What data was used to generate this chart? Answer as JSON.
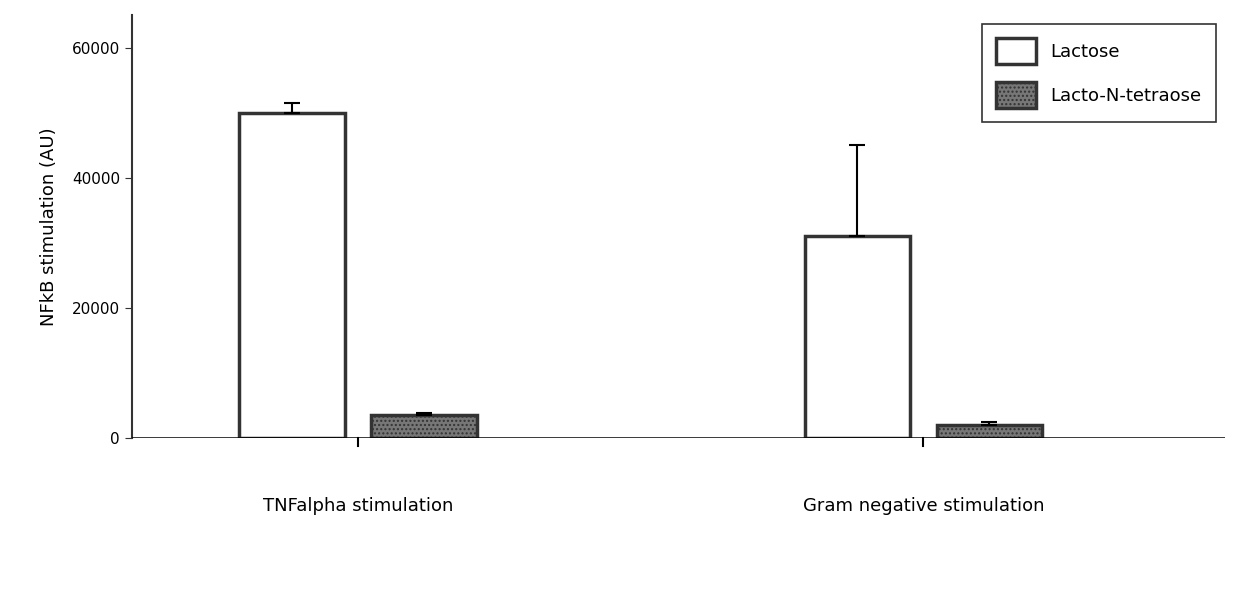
{
  "groups": [
    "TNFalpha stimulation",
    "Gram negative stimulation"
  ],
  "bar_labels": [
    "Lactose",
    "Lacto-N-tetraose"
  ],
  "values": [
    [
      50000,
      3500
    ],
    [
      31000,
      2000
    ]
  ],
  "errors": [
    [
      1500,
      400
    ],
    [
      14000,
      500
    ]
  ],
  "bar_colors": [
    "white",
    "#777777"
  ],
  "bar_hatch": [
    null,
    "...."
  ],
  "bar_edge_color": "#333333",
  "ylabel": "NFkB stimulation (AU)",
  "ylim": [
    0,
    65000
  ],
  "yticks": [
    0,
    20000,
    40000,
    60000
  ],
  "legend_labels": [
    "Lactose",
    "Lacto-N-tetraose"
  ],
  "bar_width": 0.28,
  "background_color": "#ffffff",
  "label_fontsize": 13,
  "tick_fontsize": 11,
  "legend_fontsize": 13
}
